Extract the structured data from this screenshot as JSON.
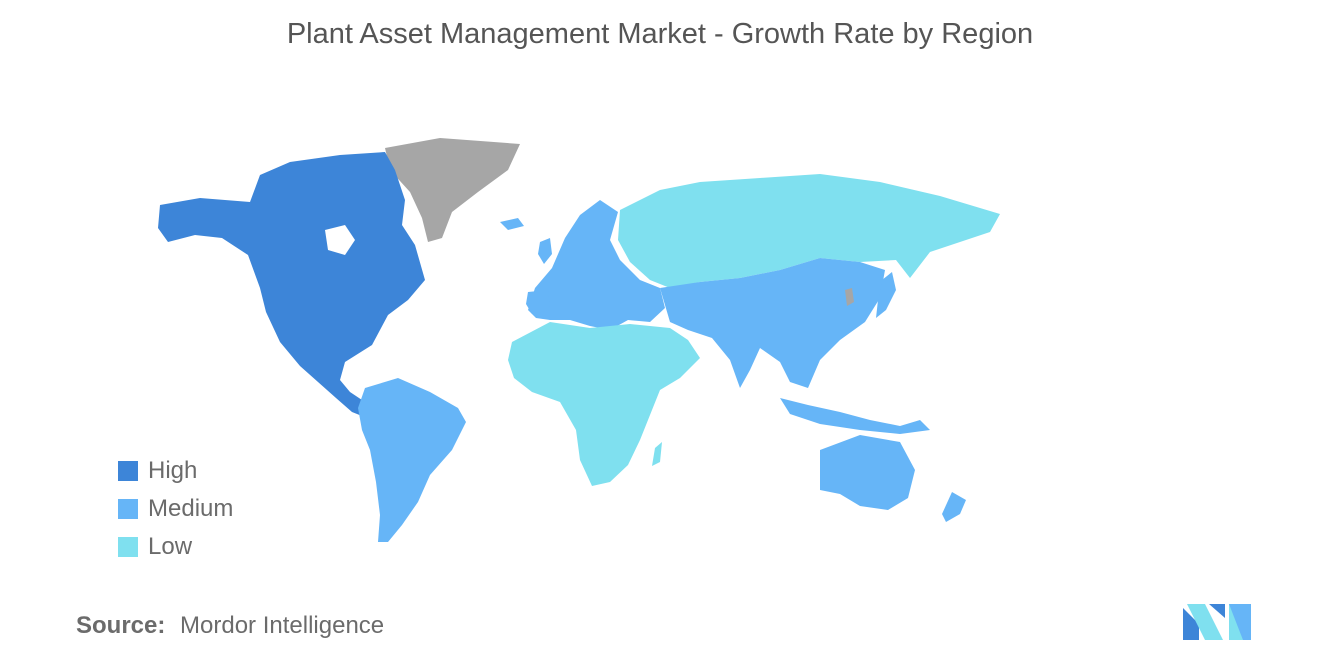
{
  "title": "Plant Asset Management Market  - Growth Rate by Region",
  "legend": [
    {
      "label": "High",
      "color": "#3d85d8"
    },
    {
      "label": "Medium",
      "color": "#66b5f7"
    },
    {
      "label": "Low",
      "color": "#7fe0ef"
    }
  ],
  "no_data_color": "#a6a6a6",
  "regions": {
    "north_america": "High",
    "south_america": "Medium",
    "europe": "Medium",
    "asia_pacific": "Medium",
    "russia": "Low",
    "middle_east_africa": "Low",
    "greenland": "no data"
  },
  "source": {
    "label": "Source:",
    "text": "Mordor Intelligence"
  },
  "logo_icon": "mordor-intelligence-logo"
}
